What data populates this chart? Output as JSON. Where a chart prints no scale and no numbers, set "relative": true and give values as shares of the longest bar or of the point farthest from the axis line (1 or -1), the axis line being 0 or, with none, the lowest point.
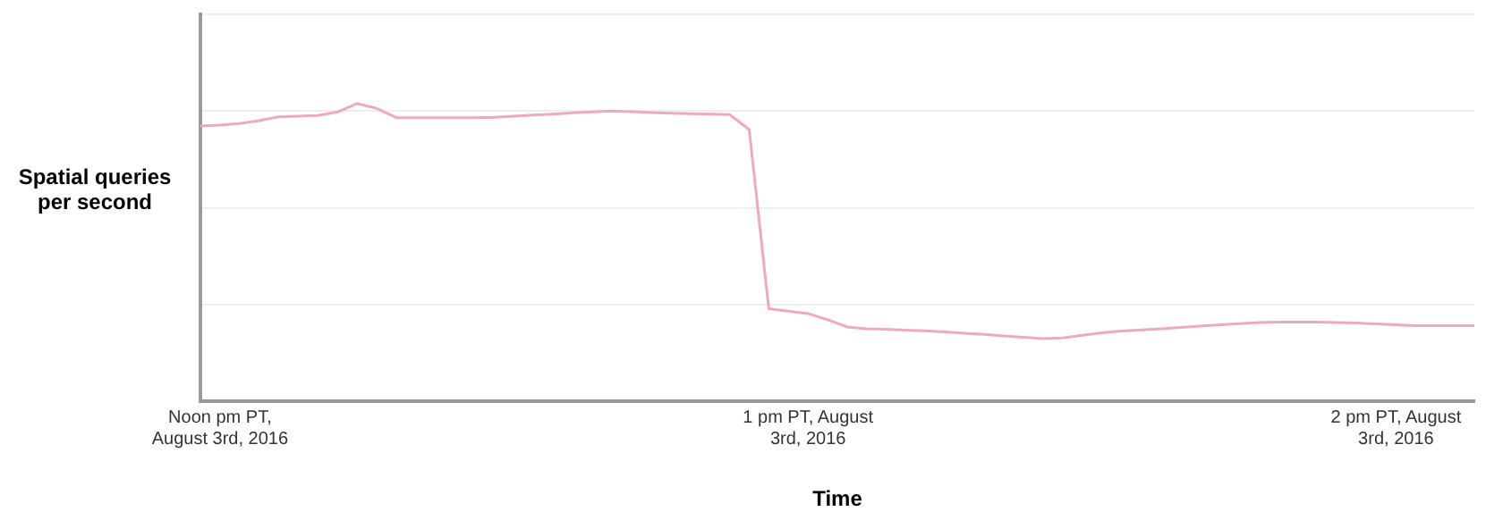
{
  "chart_data": {
    "type": "line",
    "relative": true,
    "xlabel": "Time",
    "ylabel": "Spatial queries per second",
    "categories": [
      null,
      "Noon pm PT, August 3rd, 2016",
      null,
      null,
      null,
      null,
      null,
      null,
      null,
      null,
      null,
      null,
      null,
      null,
      null,
      null,
      null,
      null,
      null,
      null,
      null,
      null,
      null,
      null,
      null,
      null,
      null,
      null,
      null,
      null,
      null,
      "1 pm PT, August 3rd, 2016",
      null,
      null,
      null,
      null,
      null,
      null,
      null,
      null,
      null,
      null,
      null,
      null,
      null,
      null,
      null,
      null,
      null,
      null,
      null,
      null,
      null,
      null,
      null,
      null,
      null,
      null,
      null,
      null,
      null,
      "2 pm PT, August 3rd, 2016",
      null,
      null,
      null,
      null
    ],
    "series": [
      {
        "color": "#eeaabb",
        "values": [
          0.925,
          0.928,
          0.933,
          0.943,
          0.956,
          0.958,
          0.96,
          0.972,
          1,
          0.984,
          0.953,
          0.953,
          0.953,
          0.953,
          0.953,
          0.954,
          0.958,
          0.962,
          0.965,
          0.969,
          0.972,
          0.975,
          0.973,
          0.97,
          0.968,
          0.966,
          0.965,
          0.963,
          0.913,
          0.311,
          0.303,
          0.295,
          0.274,
          0.25,
          0.244,
          0.242,
          0.239,
          0.237,
          0.233,
          0.229,
          0.225,
          0.22,
          0.215,
          0.211,
          0.213,
          0.222,
          0.23,
          0.236,
          0.24,
          0.244,
          0.248,
          0.253,
          0.257,
          0.261,
          0.265,
          0.266,
          0.266,
          0.266,
          0.265,
          0.263,
          0.26,
          0.257,
          0.254,
          0.254,
          0.254,
          0.254
        ]
      }
    ],
    "grid": "y",
    "legend": false,
    "marker": "none",
    "line_style": "solid"
  }
}
